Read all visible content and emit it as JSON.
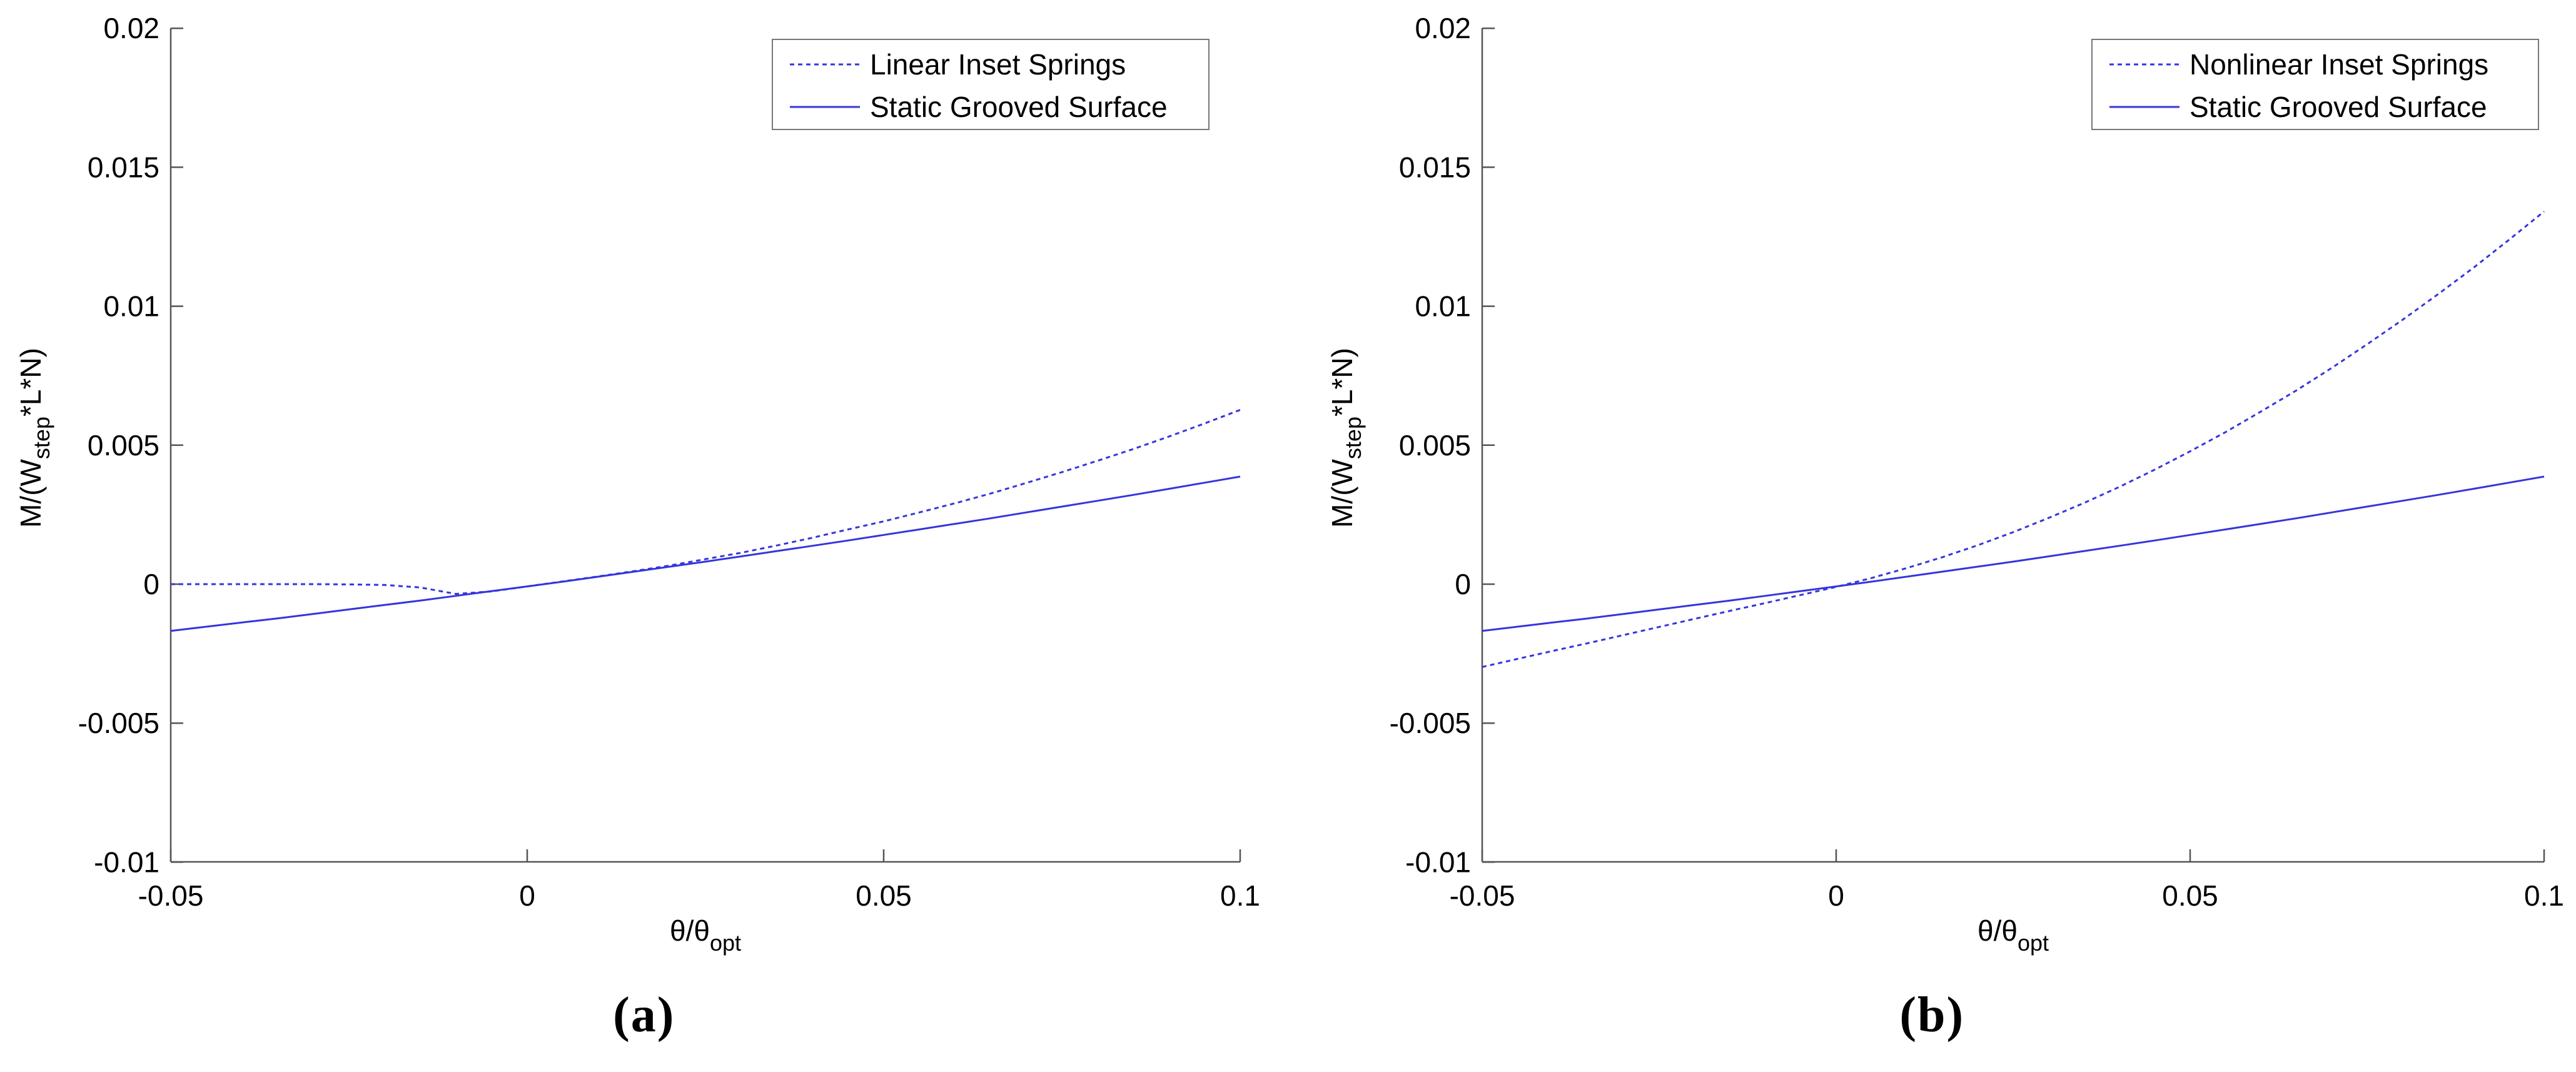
{
  "figure": {
    "captions": [
      "(a)",
      "(b)"
    ],
    "background": "#ffffff"
  },
  "colors": {
    "line": "#3535dd",
    "axis": "#555555",
    "text": "#000000",
    "legend_border": "#777777",
    "legend_fill": "#ffffff"
  },
  "chart_data": [
    {
      "type": "line",
      "panel": "a",
      "title": "",
      "xlabel_main": "θ/θ",
      "xlabel_sub": "opt",
      "ylabel_pre": "M/(W",
      "ylabel_sub": "step",
      "ylabel_post": "*L*N)",
      "xlim": [
        -0.05,
        0.1
      ],
      "ylim": [
        -0.01,
        0.02
      ],
      "xticks": [
        -0.05,
        0,
        0.05,
        0.1
      ],
      "xtick_labels": [
        "-0.05",
        "0",
        "0.05",
        "0.1"
      ],
      "yticks": [
        -0.01,
        -0.005,
        0,
        0.005,
        0.01,
        0.015,
        0.02
      ],
      "ytick_labels": [
        "-0.01",
        "-0.005",
        "0",
        "0.005",
        "0.01",
        "0.015",
        "0.02"
      ],
      "grid": false,
      "legend_position": "top-right",
      "x": [
        -0.05,
        -0.045,
        -0.04,
        -0.035,
        -0.03,
        -0.025,
        -0.02,
        -0.015,
        -0.01,
        -0.005,
        0,
        0.005,
        0.01,
        0.015,
        0.02,
        0.025,
        0.03,
        0.035,
        0.04,
        0.045,
        0.05,
        0.055,
        0.06,
        0.065,
        0.07,
        0.075,
        0.08,
        0.085,
        0.09,
        0.095,
        0.1
      ],
      "series": [
        {
          "name": "Linear Inset Springs",
          "style": "dashed",
          "values": [
            0,
            0,
            0,
            0,
            0,
            -1e-05,
            -3e-05,
            -0.00012,
            -0.00035,
            -0.00026,
            -8e-05,
            0.0001,
            0.00028,
            0.00047,
            0.00067,
            0.0009,
            0.00113,
            0.00139,
            0.00167,
            0.00197,
            0.00226,
            0.00258,
            0.00291,
            0.00326,
            0.00364,
            0.00403,
            0.00444,
            0.00486,
            0.00531,
            0.00578,
            0.00627
          ]
        },
        {
          "name": "Static Grooved Surface",
          "style": "solid",
          "values": [
            -0.00168,
            -0.00153,
            -0.00138,
            -0.00123,
            -0.00107,
            -0.00091,
            -0.00075,
            -0.00059,
            -0.00042,
            -0.00025,
            -8e-05,
            9e-05,
            0.00027,
            0.00045,
            0.00063,
            0.00081,
            0.001,
            0.00119,
            0.00138,
            0.00157,
            0.00177,
            0.00197,
            0.00217,
            0.00237,
            0.00258,
            0.00279,
            0.003,
            0.00321,
            0.00343,
            0.00365,
            0.00387
          ]
        }
      ]
    },
    {
      "type": "line",
      "panel": "b",
      "title": "",
      "xlabel_main": "θ/θ",
      "xlabel_sub": "opt",
      "ylabel_pre": "M/(W",
      "ylabel_sub": "step",
      "ylabel_post": "*L*N)",
      "xlim": [
        -0.05,
        0.1
      ],
      "ylim": [
        -0.01,
        0.02
      ],
      "xticks": [
        -0.05,
        0,
        0.05,
        0.1
      ],
      "xtick_labels": [
        "-0.05",
        "0",
        "0.05",
        "0.1"
      ],
      "yticks": [
        -0.01,
        -0.005,
        0,
        0.005,
        0.01,
        0.015,
        0.02
      ],
      "ytick_labels": [
        "-0.01",
        "-0.005",
        "0",
        "0.005",
        "0.01",
        "0.015",
        "0.02"
      ],
      "grid": false,
      "legend_position": "top-right",
      "x": [
        -0.05,
        -0.045,
        -0.04,
        -0.035,
        -0.03,
        -0.025,
        -0.02,
        -0.015,
        -0.01,
        -0.005,
        0,
        0.005,
        0.01,
        0.015,
        0.02,
        0.025,
        0.03,
        0.035,
        0.04,
        0.045,
        0.05,
        0.055,
        0.06,
        0.065,
        0.07,
        0.075,
        0.08,
        0.085,
        0.09,
        0.095,
        0.1
      ],
      "series": [
        {
          "name": "Nonlinear Inset Springs",
          "style": "dashed",
          "values": [
            -0.00298,
            -0.00269,
            -0.0024,
            -0.00212,
            -0.00183,
            -0.00154,
            -0.00125,
            -0.00096,
            -0.00068,
            -0.00039,
            -0.0001,
            0.00022,
            0.00058,
            0.00097,
            0.0014,
            0.00187,
            0.00238,
            0.00292,
            0.0035,
            0.00412,
            0.00478,
            0.00547,
            0.00621,
            0.00697,
            0.00778,
            0.00863,
            0.00951,
            0.01043,
            0.01138,
            0.01238,
            0.01341
          ]
        },
        {
          "name": "Static Grooved Surface",
          "style": "solid",
          "values": [
            -0.00168,
            -0.00153,
            -0.00138,
            -0.00123,
            -0.00107,
            -0.00091,
            -0.00075,
            -0.00059,
            -0.00042,
            -0.00025,
            -8e-05,
            9e-05,
            0.00027,
            0.00045,
            0.00063,
            0.00081,
            0.001,
            0.00119,
            0.00138,
            0.00157,
            0.00177,
            0.00197,
            0.00217,
            0.00237,
            0.00258,
            0.00279,
            0.003,
            0.00321,
            0.00343,
            0.00365,
            0.00387
          ]
        }
      ]
    }
  ]
}
